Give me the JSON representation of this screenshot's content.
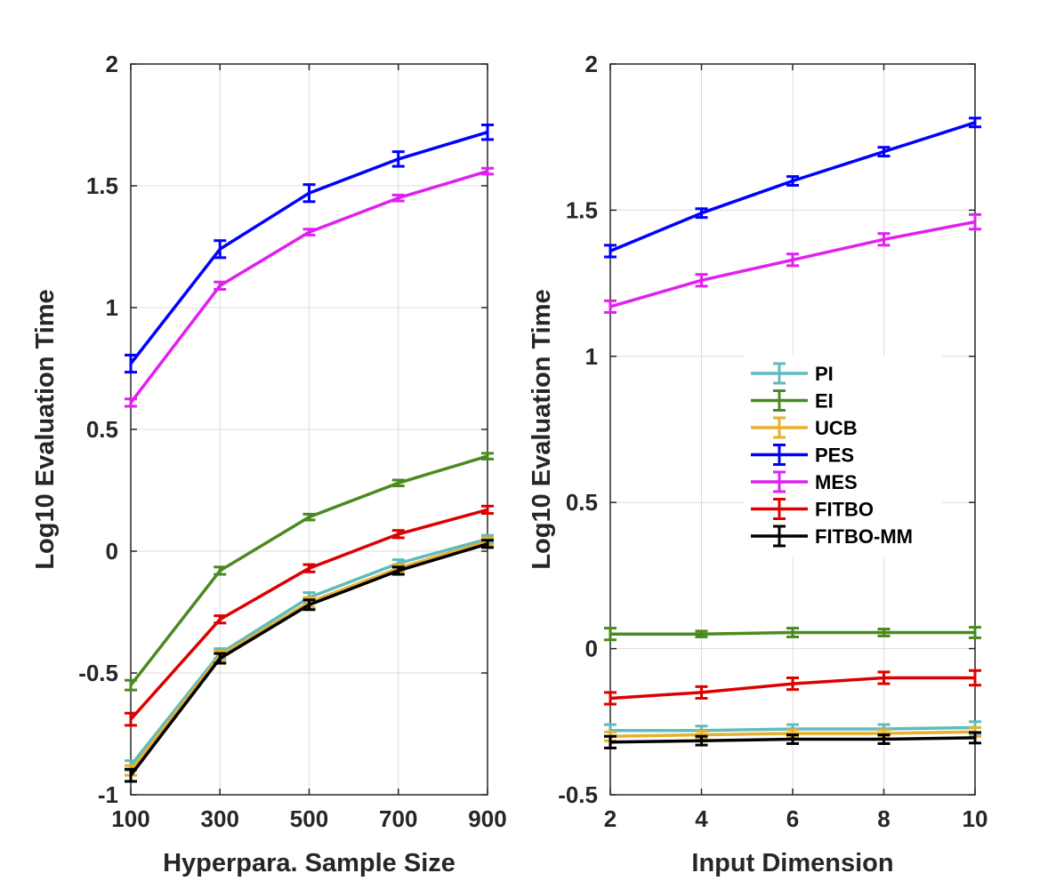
{
  "chart_data": [
    {
      "type": "line",
      "xlabel": "Hyperpara. Sample Size",
      "ylabel": "Log10 Evaluation Time",
      "xlim": [
        100,
        900
      ],
      "ylim": [
        -1,
        2
      ],
      "xticks": [
        100,
        300,
        500,
        700,
        900
      ],
      "yticks": [
        -1,
        -0.5,
        0,
        0.5,
        1,
        1.5,
        2
      ],
      "ytick_labels": [
        "-1",
        "-0.5",
        "0",
        "0.5",
        "1",
        "1.5",
        "2"
      ],
      "grid": true,
      "x": [
        100,
        300,
        500,
        700,
        900
      ],
      "series": [
        {
          "name": "PI",
          "color": "#5fbcbc",
          "values": [
            -0.88,
            -0.42,
            -0.19,
            -0.05,
            0.05
          ],
          "errors": [
            0.02,
            0.02,
            0.02,
            0.015,
            0.015
          ]
        },
        {
          "name": "EI",
          "color": "#4a8a20",
          "values": [
            -0.55,
            -0.08,
            0.14,
            0.28,
            0.39
          ],
          "errors": [
            0.02,
            0.015,
            0.012,
            0.012,
            0.012
          ]
        },
        {
          "name": "UCB",
          "color": "#e6b030",
          "values": [
            -0.9,
            -0.43,
            -0.21,
            -0.07,
            0.04
          ],
          "errors": [
            0.02,
            0.02,
            0.02,
            0.015,
            0.015
          ]
        },
        {
          "name": "PES",
          "color": "#0000ff",
          "values": [
            0.77,
            1.24,
            1.47,
            1.61,
            1.72
          ],
          "errors": [
            0.035,
            0.035,
            0.035,
            0.03,
            0.03
          ]
        },
        {
          "name": "MES",
          "color": "#e020f0",
          "values": [
            0.61,
            1.09,
            1.31,
            1.45,
            1.56
          ],
          "errors": [
            0.015,
            0.015,
            0.012,
            0.012,
            0.012
          ]
        },
        {
          "name": "FITBO",
          "color": "#dd0000",
          "values": [
            -0.69,
            -0.28,
            -0.07,
            0.07,
            0.17
          ],
          "errors": [
            0.025,
            0.015,
            0.015,
            0.015,
            0.015
          ]
        },
        {
          "name": "FITBO-MM",
          "color": "#000000",
          "values": [
            -0.92,
            -0.44,
            -0.22,
            -0.08,
            0.03
          ],
          "errors": [
            0.025,
            0.02,
            0.02,
            0.015,
            0.015
          ]
        }
      ]
    },
    {
      "type": "line",
      "xlabel": "Input Dimension",
      "ylabel": "Log10 Evaluation Time",
      "xlim": [
        2,
        10
      ],
      "ylim": [
        -0.5,
        2
      ],
      "xticks": [
        2,
        4,
        6,
        8,
        10
      ],
      "yticks": [
        -0.5,
        0,
        0.5,
        1,
        1.5,
        2
      ],
      "ytick_labels": [
        "-0.5",
        "0",
        "0.5",
        "1",
        "1.5",
        "2"
      ],
      "grid": true,
      "legend": "center-right",
      "x": [
        2,
        4,
        6,
        8,
        10
      ],
      "series": [
        {
          "name": "PI",
          "color": "#5fbcbc",
          "values": [
            -0.28,
            -0.28,
            -0.275,
            -0.275,
            -0.27
          ],
          "errors": [
            0.02,
            0.015,
            0.015,
            0.015,
            0.02
          ]
        },
        {
          "name": "EI",
          "color": "#4a8a20",
          "values": [
            0.05,
            0.05,
            0.055,
            0.055,
            0.055
          ],
          "errors": [
            0.02,
            0.01,
            0.015,
            0.012,
            0.018
          ]
        },
        {
          "name": "UCB",
          "color": "#e6b030",
          "values": [
            -0.3,
            -0.295,
            -0.29,
            -0.29,
            -0.285
          ],
          "errors": [
            0.015,
            0.012,
            0.012,
            0.012,
            0.015
          ]
        },
        {
          "name": "PES",
          "color": "#0000ff",
          "values": [
            1.36,
            1.49,
            1.6,
            1.7,
            1.8
          ],
          "errors": [
            0.02,
            0.015,
            0.015,
            0.015,
            0.015
          ]
        },
        {
          "name": "MES",
          "color": "#e020f0",
          "values": [
            1.17,
            1.26,
            1.33,
            1.4,
            1.46
          ],
          "errors": [
            0.02,
            0.02,
            0.02,
            0.02,
            0.025
          ]
        },
        {
          "name": "FITBO",
          "color": "#dd0000",
          "values": [
            -0.17,
            -0.15,
            -0.12,
            -0.1,
            -0.1
          ],
          "errors": [
            0.02,
            0.02,
            0.02,
            0.02,
            0.025
          ]
        },
        {
          "name": "FITBO-MM",
          "color": "#000000",
          "values": [
            -0.32,
            -0.315,
            -0.31,
            -0.31,
            -0.305
          ],
          "errors": [
            0.02,
            0.015,
            0.015,
            0.015,
            0.018
          ]
        }
      ]
    }
  ]
}
